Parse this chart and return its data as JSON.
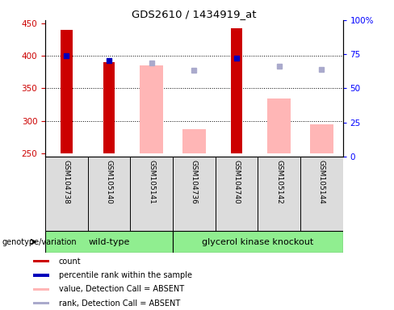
{
  "title": "GDS2610 / 1434919_at",
  "samples": [
    "GSM104738",
    "GSM105140",
    "GSM105141",
    "GSM104736",
    "GSM104740",
    "GSM105142",
    "GSM105144"
  ],
  "ylim_left": [
    245,
    455
  ],
  "ylim_right": [
    0,
    100
  ],
  "yticks_left": [
    250,
    300,
    350,
    400,
    450
  ],
  "yticks_right": [
    0,
    25,
    50,
    75,
    100
  ],
  "yright_labels": [
    "0",
    "25",
    "50",
    "75",
    "100%"
  ],
  "bar_bottom": 250,
  "red_bars": {
    "GSM104738": 440,
    "GSM105140": 390,
    "GSM105141": null,
    "GSM104736": null,
    "GSM104740": 442,
    "GSM105142": null,
    "GSM105144": null
  },
  "pink_bars": {
    "GSM104738": null,
    "GSM105140": null,
    "GSM105141": 385,
    "GSM104736": 287,
    "GSM104740": null,
    "GSM105142": 335,
    "GSM105144": 294
  },
  "blue_squares": {
    "GSM104738": 400,
    "GSM105140": 393,
    "GSM105141": null,
    "GSM104736": null,
    "GSM104740": 397,
    "GSM105142": null,
    "GSM105144": null
  },
  "lavender_squares": {
    "GSM104738": null,
    "GSM105140": null,
    "GSM105141": 389,
    "GSM104736": 378,
    "GSM104740": null,
    "GSM105142": 384,
    "GSM105144": 379
  },
  "red_color": "#CC0000",
  "pink_color": "#FFB6B6",
  "blue_color": "#0000BB",
  "lavender_color": "#AAAACC",
  "wt_samples": 3,
  "gk_samples": 4,
  "group_wt_label": "wild-type",
  "group_gk_label": "glycerol kinase knockout",
  "group_color": "#90EE90",
  "bg_color": "#DCDCDC",
  "legend_items": [
    {
      "label": "count",
      "color": "#CC0000"
    },
    {
      "label": "percentile rank within the sample",
      "color": "#0000BB"
    },
    {
      "label": "value, Detection Call = ABSENT",
      "color": "#FFB6B6"
    },
    {
      "label": "rank, Detection Call = ABSENT",
      "color": "#AAAACC"
    }
  ],
  "genotype_label": "genotype/variation"
}
